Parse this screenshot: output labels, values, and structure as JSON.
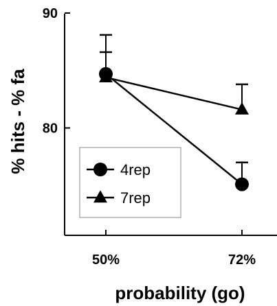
{
  "chart_data": {
    "type": "line",
    "xlabel": "probability (go)",
    "ylabel": "% hits - % fa",
    "categories": [
      "50%",
      "72%"
    ],
    "ylim": [
      70,
      90
    ],
    "y_ticks": [
      80,
      90
    ],
    "grid": false,
    "legend_position": "bottom-left",
    "series": [
      {
        "name": "4rep",
        "marker": "circle",
        "values": [
          84.7,
          75.1
        ],
        "error_upper": [
          86.6,
          77.0
        ]
      },
      {
        "name": "7rep",
        "marker": "triangle",
        "values": [
          84.4,
          81.6
        ],
        "error_upper": [
          88.1,
          83.8
        ]
      }
    ]
  }
}
